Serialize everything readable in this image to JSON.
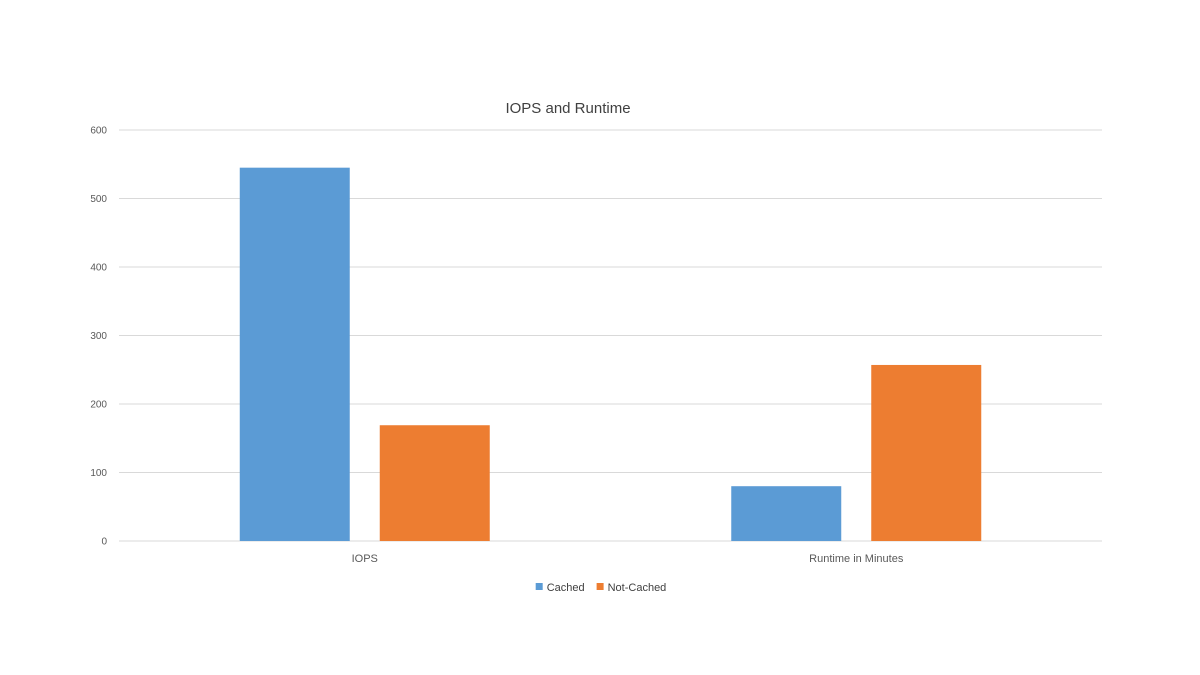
{
  "chart_data": {
    "type": "bar",
    "title": "IOPS and Runtime",
    "categories": [
      "IOPS",
      "Runtime in Minutes"
    ],
    "series": [
      {
        "name": "Cached",
        "values": [
          545,
          80
        ],
        "color": "#5b9bd5"
      },
      {
        "name": "Not-Cached",
        "values": [
          169,
          257
        ],
        "color": "#ed7d31"
      }
    ],
    "yticks": [
      "0",
      "100",
      "200",
      "300",
      "400",
      "500",
      "600"
    ],
    "ylim": [
      0,
      600
    ],
    "grid": true,
    "legend_position": "bottom"
  }
}
